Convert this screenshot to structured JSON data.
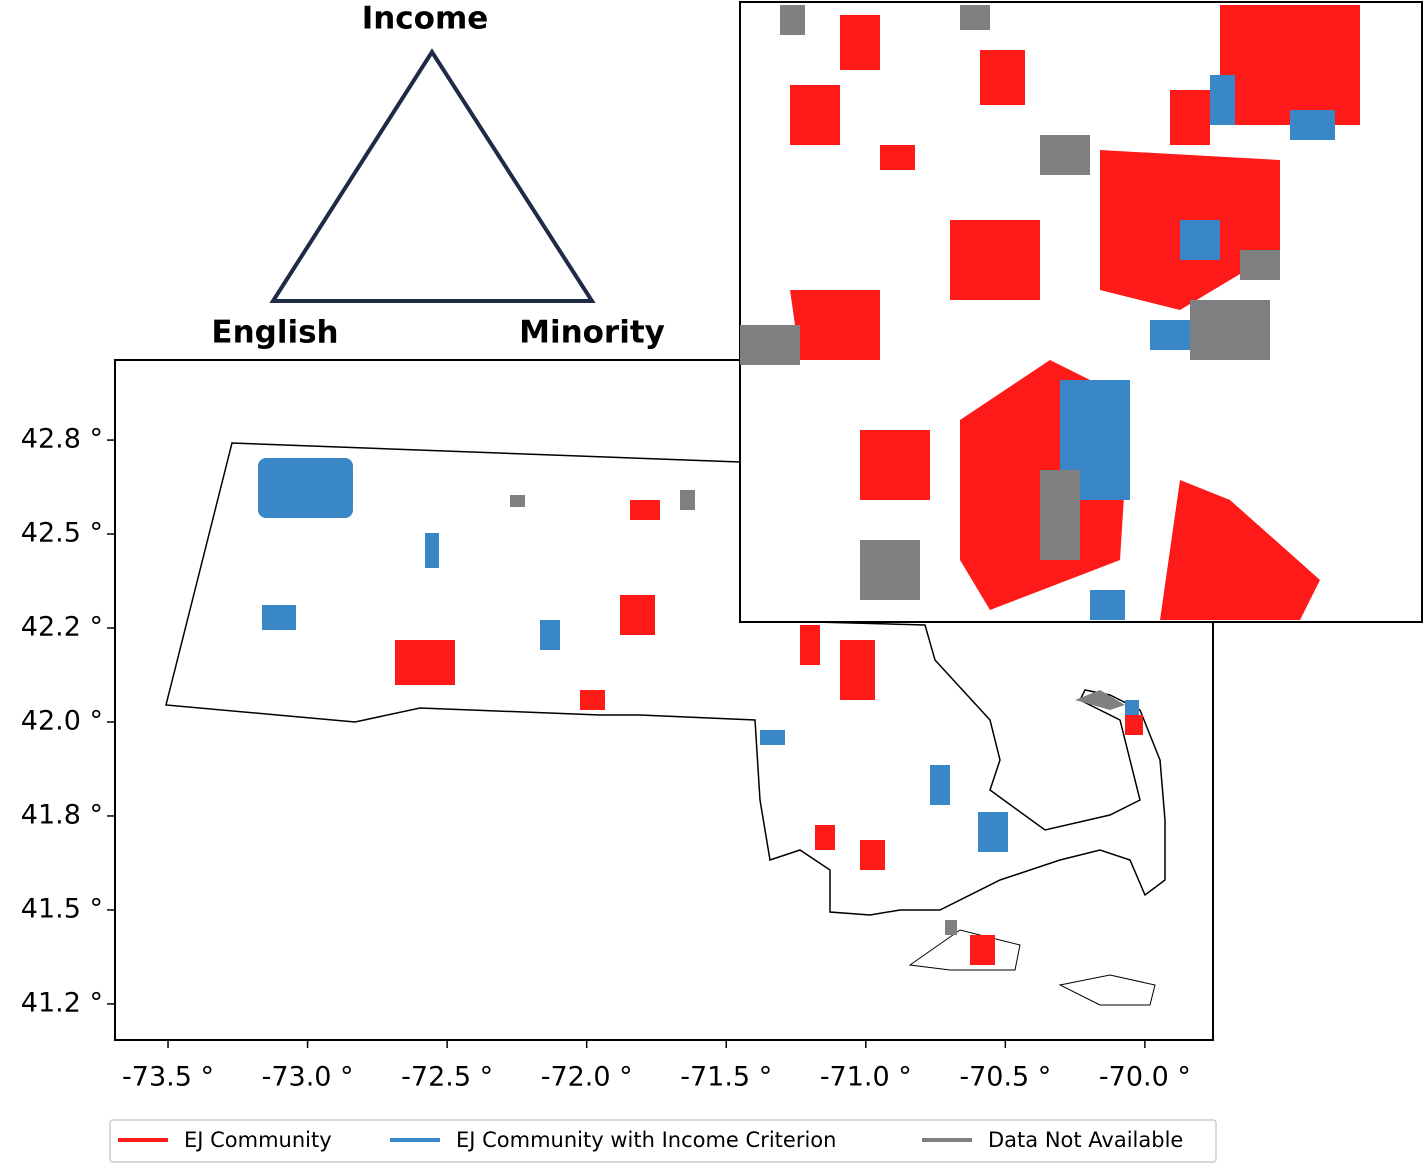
{
  "diagram": {
    "vertices": [
      "Income",
      "English",
      "Minority"
    ]
  },
  "map": {
    "xlim": [
      -73.69,
      -69.756
    ],
    "ylim": [
      41.154,
      42.963
    ],
    "xticks": [
      {
        "value": -73.5,
        "label": "-73.5 °"
      },
      {
        "value": -73.0,
        "label": "-73.0 °"
      },
      {
        "value": -72.5,
        "label": "-72.5 °"
      },
      {
        "value": -72.0,
        "label": "-72.0 °"
      },
      {
        "value": -71.5,
        "label": "-71.5 °"
      },
      {
        "value": -71.0,
        "label": "-71.0 °"
      },
      {
        "value": -70.5,
        "label": "-70.5 °"
      },
      {
        "value": -70.0,
        "label": "-70.0 °"
      }
    ],
    "yticks": [
      {
        "value": 42.75,
        "label": "42.8 °"
      },
      {
        "value": 42.5,
        "label": "42.5 °"
      },
      {
        "value": 42.25,
        "label": "42.2 °"
      },
      {
        "value": 42.0,
        "label": "42.0 °"
      },
      {
        "value": 41.75,
        "label": "41.8 °"
      },
      {
        "value": 41.5,
        "label": "41.5 °"
      },
      {
        "value": 41.25,
        "label": "41.2 °"
      }
    ]
  },
  "legend": {
    "items": [
      {
        "label": "EJ Community",
        "color": "#ff1a1a"
      },
      {
        "label": "EJ Community with Income Criterion",
        "color": "#3a87c8"
      },
      {
        "label": "Data Not Available",
        "color": "#808080"
      }
    ]
  }
}
